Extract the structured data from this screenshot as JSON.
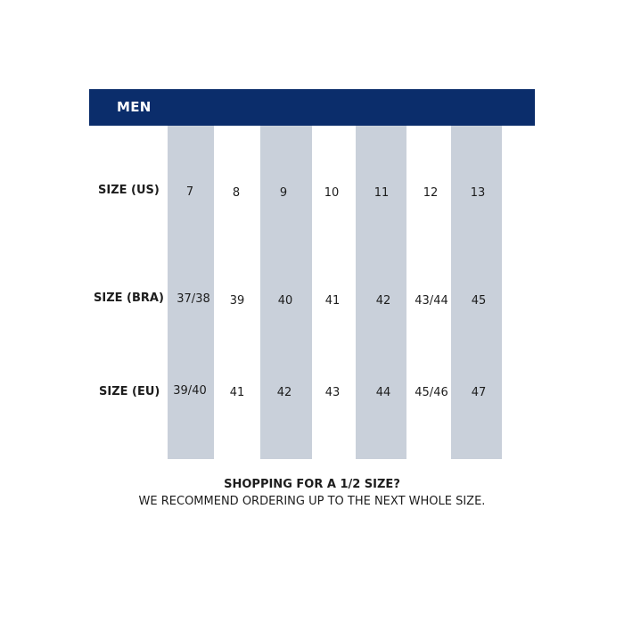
{
  "header": {
    "title": "MEN"
  },
  "rows": [
    {
      "label": "SIZE (US)",
      "values": [
        "7",
        "8",
        "9",
        "10",
        "11",
        "12",
        "13"
      ]
    },
    {
      "label": "SIZE (BRA)",
      "values": [
        "37/38",
        "39",
        "40",
        "41",
        "42",
        "43/44",
        "45"
      ]
    },
    {
      "label": "SIZE (EU)",
      "values": [
        "39/40",
        "41",
        "42",
        "43",
        "44",
        "45/46",
        "47"
      ]
    }
  ],
  "footer": {
    "line1": "SHOPPING FOR A 1/2 SIZE?",
    "line2": "WE RECOMMEND ORDERING UP TO THE NEXT WHOLE SIZE."
  },
  "colors": {
    "header_bg": "#0b2d6b",
    "column_shade": "#c9d0da",
    "header_text": "#ffffff"
  }
}
